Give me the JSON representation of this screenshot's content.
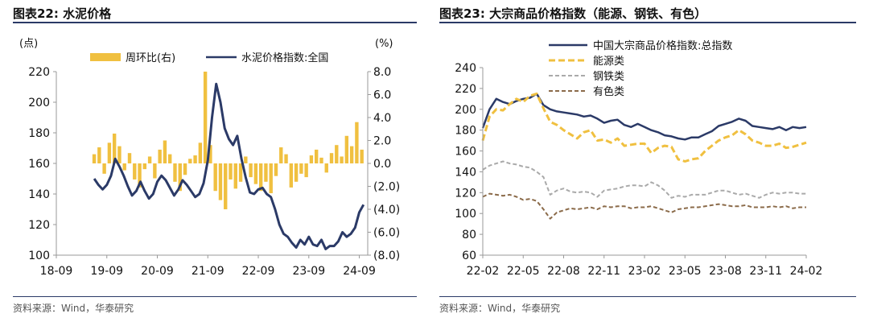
{
  "panels": [
    {
      "title": "图表22:  水泥价格",
      "source": "资料来源：Wind，华泰研究"
    },
    {
      "title": "图表23:  大宗商品价格指数（能源、钢铁、有色）",
      "source": "资料来源：Wind，华泰研究"
    }
  ],
  "chart_data": [
    {
      "type": "bar+line",
      "left_unit": "(点)",
      "right_unit": "(%)",
      "ylim_left": [
        100,
        220
      ],
      "left_ticks": [
        "220",
        "200",
        "180",
        "160",
        "140",
        "120",
        "100"
      ],
      "left_tick_values": [
        220,
        200,
        180,
        160,
        140,
        120,
        100
      ],
      "ylim_right": [
        -8,
        8
      ],
      "right_ticks": [
        "8.0",
        "6.0",
        "4.0",
        "2.0",
        "0.0",
        "(2.0)",
        "(4.0)",
        "(6.0)",
        "(8.0)"
      ],
      "right_tick_values": [
        8,
        6,
        4,
        2,
        0,
        -2,
        -4,
        -6,
        -8
      ],
      "x_ticks": [
        "18-09",
        "19-09",
        "20-09",
        "21-09",
        "22-09",
        "23-09",
        "24-09"
      ],
      "x_tick_values": [
        0,
        12,
        24,
        36,
        48,
        60,
        72
      ],
      "xlim": [
        0,
        74
      ],
      "colors": {
        "bar": "#f0c040",
        "line": "#2b3a67"
      },
      "series": [
        {
          "name": "周环比(右)",
          "kind": "bar",
          "axis": "right",
          "x": [
            9.0,
            10.2,
            11.4,
            12.6,
            13.8,
            15.0,
            16.2,
            17.4,
            18.6,
            19.8,
            21.0,
            22.2,
            23.4,
            24.6,
            25.8,
            27.0,
            28.2,
            29.4,
            30.6,
            31.8,
            33.0,
            34.2,
            35.4,
            36.6,
            37.8,
            39.0,
            40.2,
            41.4,
            42.6,
            43.8,
            45.0,
            46.2,
            47.4,
            48.6,
            49.8,
            51.0,
            52.2,
            53.4,
            54.6,
            55.8,
            57.0,
            58.2,
            59.4,
            60.6,
            61.8,
            63.0,
            64.2,
            65.4,
            66.6,
            67.8,
            69.0,
            70.2,
            71.4,
            72.6
          ],
          "values": [
            0.8,
            1.4,
            -0.9,
            1.8,
            2.6,
            1.5,
            -0.6,
            0.9,
            -1.4,
            -2.1,
            -0.5,
            0.6,
            -1.3,
            1.2,
            2.0,
            0.8,
            -1.6,
            -2.4,
            -1.0,
            0.4,
            0.7,
            1.8,
            8.0,
            1.6,
            -2.4,
            -3.2,
            -4.0,
            -1.4,
            -2.2,
            -1.6,
            0.6,
            -1.2,
            -1.8,
            -2.4,
            -1.6,
            -2.6,
            -1.1,
            1.4,
            0.8,
            -2.1,
            -1.6,
            -0.9,
            -1.2,
            0.7,
            1.2,
            0.5,
            -0.8,
            0.9,
            1.6,
            0.6,
            2.4,
            1.5,
            3.6,
            1.2
          ]
        },
        {
          "name": "水泥价格指数:全国",
          "kind": "line",
          "axis": "left",
          "x": [
            9,
            10,
            11,
            12,
            13,
            14,
            15,
            16,
            17,
            18,
            19,
            20,
            21,
            22,
            23,
            24,
            25,
            26,
            27,
            28,
            29,
            30,
            31,
            32,
            33,
            34,
            35,
            36,
            37,
            38,
            39,
            40,
            41,
            42,
            43,
            44,
            45,
            46,
            47,
            48,
            49,
            50,
            51,
            52,
            53,
            54,
            55,
            56,
            57,
            58,
            59,
            60,
            61,
            62,
            63,
            64,
            65,
            66,
            67,
            68,
            69,
            70,
            71,
            72,
            73
          ],
          "values": [
            150,
            146,
            143,
            146,
            152,
            163,
            158,
            152,
            145,
            139,
            142,
            148,
            142,
            137,
            140,
            148,
            152,
            149,
            144,
            139,
            143,
            149,
            146,
            142,
            138,
            140,
            147,
            162,
            190,
            212,
            200,
            183,
            176,
            172,
            178,
            163,
            151,
            141,
            140,
            143,
            144,
            140,
            138,
            130,
            120,
            114,
            112,
            108,
            105,
            110,
            107,
            112,
            107,
            106,
            110,
            104,
            106,
            106,
            109,
            115,
            112,
            114,
            118,
            128,
            133
          ]
        }
      ]
    },
    {
      "type": "line",
      "ylim": [
        60,
        240
      ],
      "y_ticks": [
        "240",
        "220",
        "200",
        "180",
        "160",
        "140",
        "120",
        "100",
        "80",
        "60"
      ],
      "y_tick_values": [
        240,
        220,
        200,
        180,
        160,
        140,
        120,
        100,
        80,
        60
      ],
      "x_ticks": [
        "22-02",
        "22-05",
        "22-08",
        "22-11",
        "23-02",
        "23-05",
        "23-08",
        "23-11",
        "24-02"
      ],
      "x_tick_values": [
        0,
        3,
        6,
        9,
        12,
        15,
        18,
        21,
        24
      ],
      "xlim": [
        0,
        24
      ],
      "series": [
        {
          "name": "中国大宗商品价格指数:总指数",
          "color": "#2b3a67",
          "dash": "solid",
          "x": [
            0,
            0.5,
            1,
            1.5,
            2,
            2.5,
            3,
            3.5,
            4,
            4.5,
            5,
            5.5,
            6,
            6.5,
            7,
            7.5,
            8,
            8.5,
            9,
            9.5,
            10,
            10.5,
            11,
            11.5,
            12,
            12.5,
            13,
            13.5,
            14,
            14.5,
            15,
            15.5,
            16,
            16.5,
            17,
            17.5,
            18,
            18.5,
            19,
            19.5,
            20,
            20.5,
            21,
            21.5,
            22,
            22.5,
            23,
            23.5,
            24
          ],
          "values": [
            182,
            200,
            210,
            207,
            205,
            208,
            210,
            211,
            215,
            204,
            200,
            198,
            197,
            196,
            195,
            193,
            194,
            191,
            187,
            189,
            190,
            185,
            183,
            186,
            183,
            180,
            178,
            175,
            174,
            172,
            171,
            173,
            173,
            176,
            179,
            184,
            186,
            188,
            191,
            189,
            184,
            183,
            182,
            181,
            183,
            180,
            183,
            182,
            183
          ]
        },
        {
          "name": "能源类",
          "color": "#f0c040",
          "dash": "dashed",
          "x": [
            0,
            0.5,
            1,
            1.5,
            2,
            2.5,
            3,
            3.5,
            4,
            4.5,
            5,
            5.5,
            6,
            6.5,
            7,
            7.5,
            8,
            8.5,
            9,
            9.5,
            10,
            10.5,
            11,
            11.5,
            12,
            12.5,
            13,
            13.5,
            14,
            14.5,
            15,
            15.5,
            16,
            16.5,
            17,
            17.5,
            18,
            18.5,
            19,
            19.5,
            20,
            20.5,
            21,
            21.5,
            22,
            22.5,
            23,
            23.5,
            24
          ],
          "values": [
            170,
            193,
            200,
            199,
            205,
            210,
            207,
            213,
            215,
            201,
            188,
            185,
            180,
            176,
            172,
            178,
            180,
            170,
            171,
            168,
            172,
            165,
            166,
            167,
            167,
            158,
            163,
            165,
            164,
            152,
            150,
            152,
            153,
            160,
            165,
            170,
            173,
            175,
            180,
            176,
            170,
            168,
            165,
            165,
            167,
            163,
            164,
            166,
            168
          ]
        },
        {
          "name": "钢铁类",
          "color": "#aaaaaa",
          "dash": "dashed",
          "x": [
            0,
            0.5,
            1,
            1.5,
            2,
            2.5,
            3,
            3.5,
            4,
            4.5,
            5,
            5.5,
            6,
            6.5,
            7,
            7.5,
            8,
            8.5,
            9,
            9.5,
            10,
            10.5,
            11,
            11.5,
            12,
            12.5,
            13,
            13.5,
            14,
            14.5,
            15,
            15.5,
            16,
            16.5,
            17,
            17.5,
            18,
            18.5,
            19,
            19.5,
            20,
            20.5,
            21,
            21.5,
            22,
            22.5,
            23,
            23.5,
            24
          ],
          "values": [
            142,
            146,
            148,
            150,
            148,
            147,
            145,
            144,
            140,
            135,
            118,
            122,
            124,
            121,
            120,
            121,
            120,
            116,
            122,
            123,
            124,
            126,
            127,
            127,
            126,
            130,
            127,
            122,
            115,
            117,
            116,
            118,
            118,
            118,
            120,
            122,
            122,
            120,
            118,
            119,
            117,
            115,
            118,
            120,
            119,
            120,
            120,
            119,
            119
          ]
        },
        {
          "name": "有色类",
          "color": "#8b6b4a",
          "dash": "dashed",
          "x": [
            0,
            0.5,
            1,
            1.5,
            2,
            2.5,
            3,
            3.5,
            4,
            4.5,
            5,
            5.5,
            6,
            6.5,
            7,
            7.5,
            8,
            8.5,
            9,
            9.5,
            10,
            10.5,
            11,
            11.5,
            12,
            12.5,
            13,
            13.5,
            14,
            14.5,
            15,
            15.5,
            16,
            16.5,
            17,
            17.5,
            18,
            18.5,
            19,
            19.5,
            20,
            20.5,
            21,
            21.5,
            22,
            22.5,
            23,
            23.5,
            24
          ],
          "values": [
            116,
            119,
            118,
            117,
            118,
            116,
            113,
            114,
            112,
            104,
            95,
            101,
            103,
            105,
            104,
            105,
            106,
            104,
            107,
            106,
            107,
            107,
            105,
            106,
            106,
            107,
            105,
            103,
            101,
            104,
            105,
            106,
            106,
            107,
            108,
            109,
            108,
            107,
            107,
            108,
            106,
            106,
            106,
            107,
            106,
            107,
            105,
            106,
            106
          ]
        }
      ]
    }
  ]
}
